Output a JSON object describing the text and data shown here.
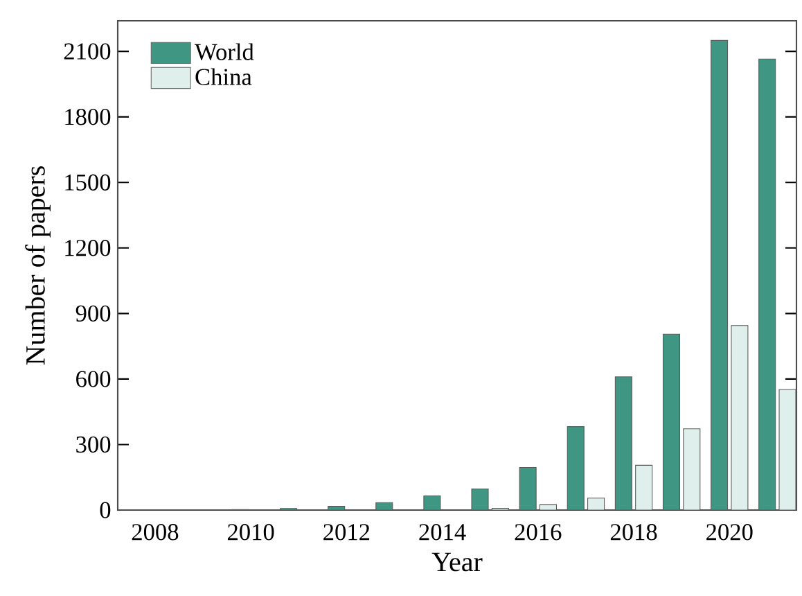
{
  "chart_data": {
    "type": "bar",
    "xlabel": "Year",
    "ylabel": "Number of papers",
    "categories": [
      "2008",
      null,
      "2010",
      null,
      "2012",
      null,
      "2014",
      null,
      "2016",
      null,
      "2018",
      null,
      "2020",
      null
    ],
    "series": [
      {
        "name": "World",
        "color": "#3f9682",
        "values": [
          null,
          null,
          2,
          7,
          17,
          34,
          65,
          97,
          195,
          382,
          610,
          805,
          2150,
          2065
        ]
      },
      {
        "name": "China",
        "color": "#dff0ec",
        "values": [
          null,
          null,
          null,
          null,
          null,
          null,
          null,
          8,
          25,
          55,
          205,
          372,
          845,
          552
        ]
      }
    ],
    "ylim": [
      0,
      2240
    ],
    "yticks": [
      0,
      300,
      600,
      900,
      1200,
      1500,
      1800,
      2100
    ],
    "legend": "top left",
    "grid": false
  }
}
